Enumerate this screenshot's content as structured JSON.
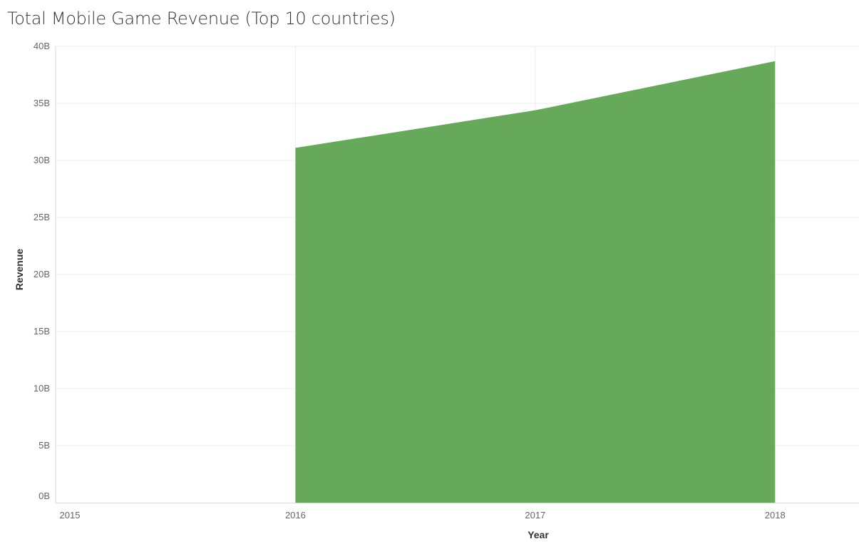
{
  "chart_data": {
    "type": "area",
    "title": "Total Mobile Game Revenue (Top 10 countries)",
    "xlabel": "Year",
    "ylabel": "Revenue",
    "x": [
      2016,
      2017,
      2018
    ],
    "values": [
      31.1,
      34.4,
      38.7
    ],
    "value_unit": "B",
    "x_ticks": [
      "2015",
      "2016",
      "2017",
      "2018"
    ],
    "x_range": [
      2015,
      2018.35
    ],
    "y_ticks": [
      "0B",
      "5B",
      "10B",
      "15B",
      "20B",
      "25B",
      "30B",
      "35B",
      "40B"
    ],
    "y_tick_values": [
      0,
      5,
      10,
      15,
      20,
      25,
      30,
      35,
      40
    ],
    "ylim": [
      0,
      40
    ],
    "grid": true,
    "legend": "none",
    "colors": {
      "area": "#67a95b",
      "grid": "#ececec",
      "axis": "#d9d9d9"
    }
  }
}
